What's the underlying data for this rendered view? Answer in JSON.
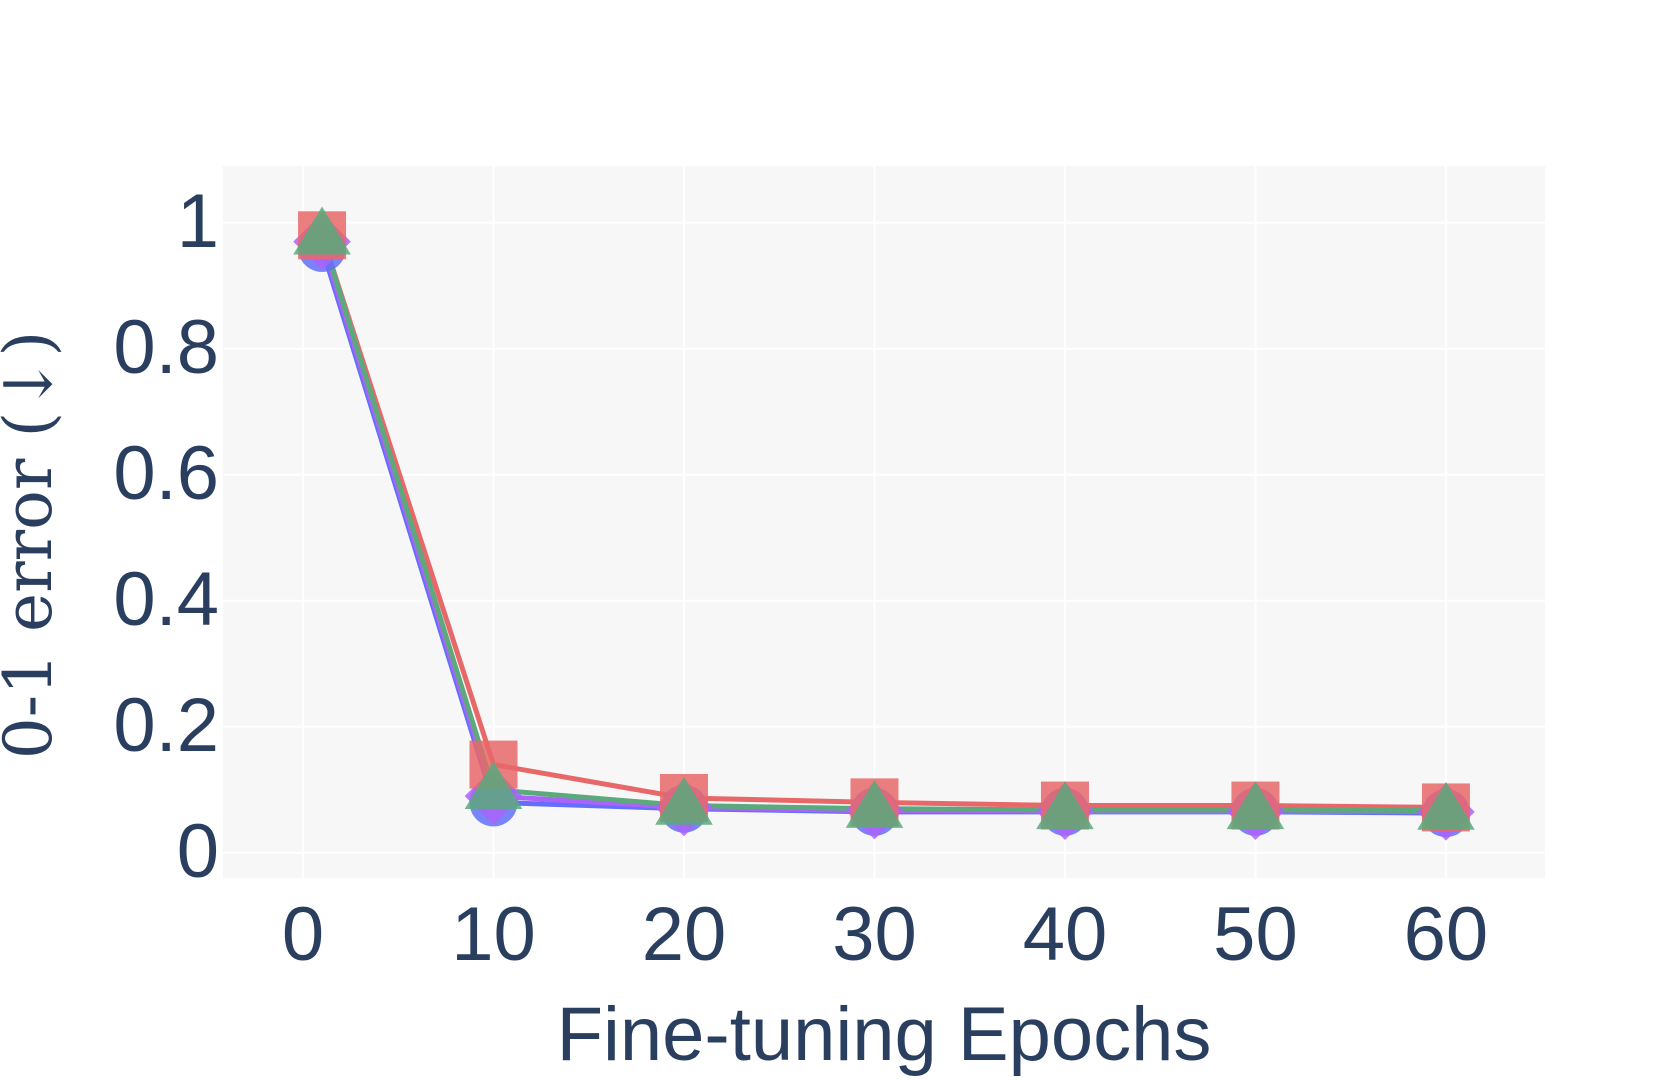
{
  "chart_data": {
    "type": "line",
    "xlabel": "Fine-tuning Epochs",
    "ylabel": "0-1 error (↓)",
    "x": [
      1,
      10,
      20,
      30,
      40,
      50,
      60
    ],
    "series": [
      {
        "color": "#636efa",
        "symbol": "circle",
        "values": [
          0.96,
          0.08,
          0.07,
          0.065,
          0.065,
          0.065,
          0.063
        ]
      },
      {
        "color": "#ab63fa",
        "symbol": "diamond",
        "values": [
          0.97,
          0.09,
          0.072,
          0.067,
          0.066,
          0.066,
          0.065
        ]
      },
      {
        "color": "#e8686a",
        "symbol": "square",
        "values": [
          0.98,
          0.14,
          0.087,
          0.08,
          0.075,
          0.075,
          0.072
        ]
      },
      {
        "color": "#5ba97c",
        "symbol": "triangle",
        "values": [
          0.98,
          0.1,
          0.075,
          0.07,
          0.068,
          0.068,
          0.067
        ]
      }
    ],
    "xlim": [
      -4.2,
      65.2
    ],
    "xticks": [
      0,
      10,
      20,
      30,
      40,
      50,
      60
    ],
    "ylim": [
      -0.04,
      1.09
    ],
    "yticks": [
      0,
      0.2,
      0.4,
      0.6,
      0.8,
      1
    ],
    "grid": true
  }
}
